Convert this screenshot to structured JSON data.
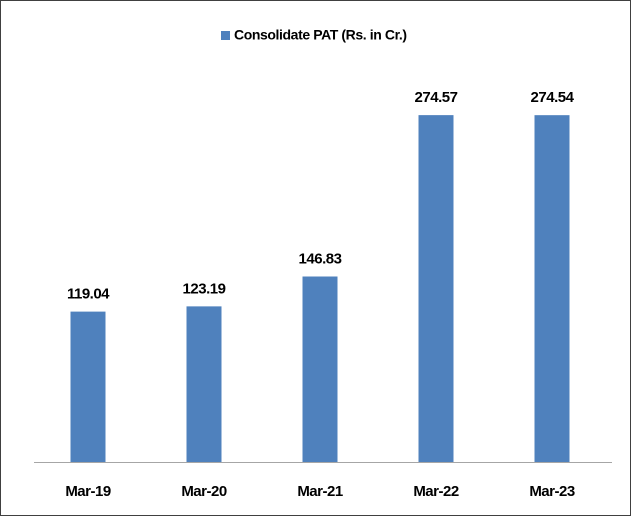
{
  "chart_data": {
    "type": "bar",
    "legend": "Consolidate PAT (Rs. in Cr.)",
    "categories": [
      "Mar-19",
      "Mar-20",
      "Mar-21",
      "Mar-22",
      "Mar-23"
    ],
    "values": [
      119.04,
      123.19,
      146.83,
      274.57,
      274.54
    ],
    "color": "#4f81bd",
    "ylim": [
      0,
      300
    ],
    "legend_position": "top"
  }
}
